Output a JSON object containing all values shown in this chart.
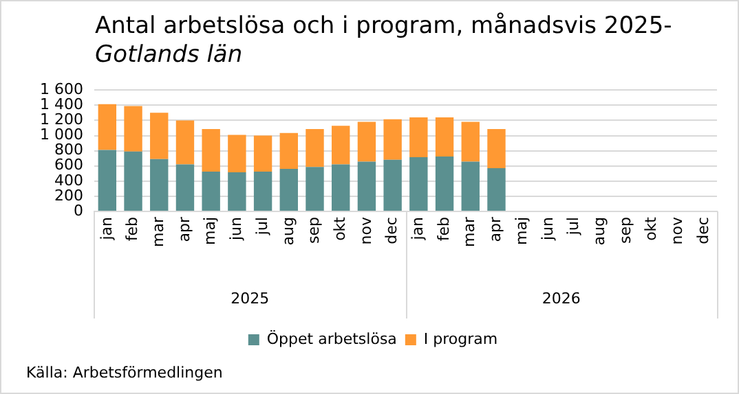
{
  "chart_data": {
    "type": "bar",
    "title": "Antal arbetslösa och i program, månadsvis 2025-",
    "subtitle": "Gotlands län",
    "categories": [
      "jan",
      "feb",
      "mar",
      "apr",
      "maj",
      "jun",
      "jul",
      "aug",
      "sep",
      "okt",
      "nov",
      "dec",
      "jan",
      "feb",
      "mar",
      "apr",
      "maj",
      "jun",
      "jul",
      "aug",
      "sep",
      "okt",
      "nov",
      "dec"
    ],
    "series": [
      {
        "name": "Öppet arbetslösa",
        "color": "#5b9090",
        "values": [
          810,
          790,
          690,
          620,
          525,
          515,
          525,
          560,
          585,
          620,
          655,
          680,
          715,
          725,
          655,
          570,
          null,
          null,
          null,
          null,
          null,
          null,
          null,
          null
        ]
      },
      {
        "name": "I program",
        "color": "#ff9933",
        "values": [
          605,
          600,
          610,
          580,
          560,
          495,
          475,
          475,
          500,
          510,
          525,
          535,
          525,
          515,
          525,
          515,
          null,
          null,
          null,
          null,
          null,
          null,
          null,
          null
        ]
      }
    ],
    "stacked": true,
    "ylim": [
      0,
      1600
    ],
    "yticks": [
      0,
      200,
      400,
      600,
      800,
      1000,
      1200,
      1400,
      1600
    ],
    "grid": "y",
    "legend": "bottom",
    "annotations": [
      "2025",
      "2026",
      "Källa: Arbetsförmedlingen"
    ]
  }
}
